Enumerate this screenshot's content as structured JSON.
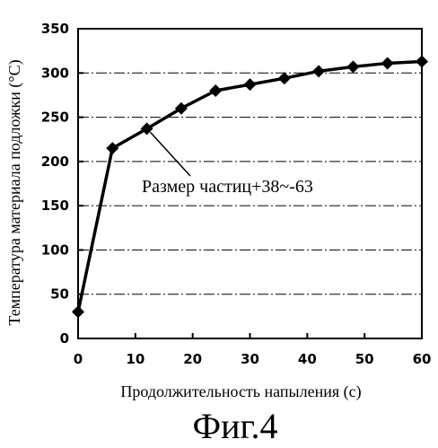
{
  "chart_data": {
    "type": "line",
    "xlabel": "Продолжительность напыления (с)",
    "ylabel": "Температура материала подложки (°С)",
    "xlim": [
      0,
      60
    ],
    "ylim": [
      0,
      350
    ],
    "xticks": [
      0,
      10,
      20,
      30,
      40,
      50,
      60
    ],
    "yticks": [
      0,
      50,
      100,
      150,
      200,
      250,
      300,
      350
    ],
    "grid": "dashed horizontal",
    "series": [
      {
        "name": "Размер частиц+38~-63",
        "x": [
          0,
          6,
          12,
          18,
          24,
          30,
          36,
          42,
          48,
          54,
          60
        ],
        "y": [
          30,
          215,
          237,
          260,
          280,
          287,
          294,
          302,
          307,
          311,
          313
        ]
      }
    ],
    "annotation": "Размер частиц+38~-63"
  },
  "caption": "Фиг.4"
}
